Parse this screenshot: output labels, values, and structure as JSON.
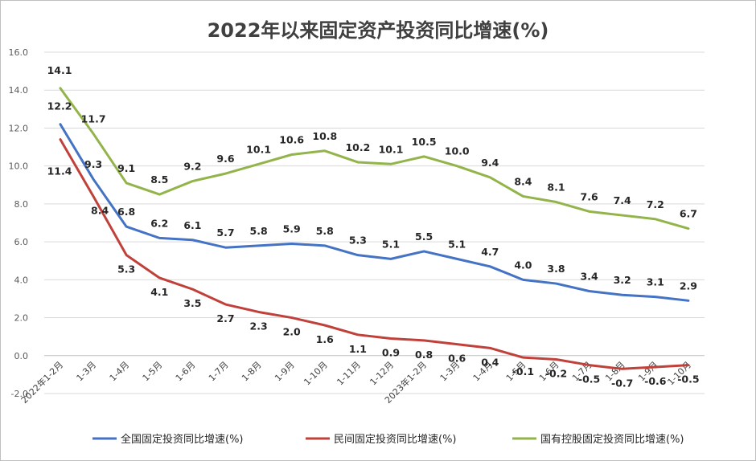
{
  "chart_data": {
    "type": "line",
    "title": "2022年以来固定资产投资同比增速(%)",
    "xlabel": "",
    "ylabel": "",
    "ylim": [
      -2.0,
      16.0
    ],
    "yticks": [
      "-2.0",
      "0.0",
      "2.0",
      "4.0",
      "6.0",
      "8.0",
      "10.0",
      "12.0",
      "14.0",
      "16.0"
    ],
    "ytick_values": [
      -2,
      0,
      2,
      4,
      6,
      8,
      10,
      12,
      14,
      16
    ],
    "grid": true,
    "legend_position": "bottom",
    "categories": [
      "2022年1-2月",
      "1-3月",
      "1-4月",
      "1-5月",
      "1-6月",
      "1-7月",
      "1-8月",
      "1-9月",
      "1-10月",
      "1-11月",
      "1-12月",
      "2023年1-2月",
      "1-3月",
      "1-4月",
      "1-5月",
      "1-6月",
      "1-7月",
      "1-8月",
      "1-9月",
      "1-10月"
    ],
    "series": [
      {
        "name": "全国固定投资同比增速(%)",
        "color": "#4472c4",
        "values": [
          12.2,
          9.3,
          6.8,
          6.2,
          6.1,
          5.7,
          5.8,
          5.9,
          5.8,
          5.3,
          5.1,
          5.5,
          5.1,
          4.7,
          4.0,
          3.8,
          3.4,
          3.2,
          3.1,
          2.9
        ],
        "labels": [
          "12.2",
          "9.3",
          "6.8",
          "6.2",
          "6.1",
          "5.7",
          "5.8",
          "5.9",
          "5.8",
          "5.3",
          "5.1",
          "5.5",
          "5.1",
          "4.7",
          "4.0",
          "3.8",
          "3.4",
          "3.2",
          "3.1",
          "2.9"
        ]
      },
      {
        "name": "民间固定投资同比增速(%)",
        "color": "#c0403a",
        "values": [
          11.4,
          8.4,
          5.3,
          4.1,
          3.5,
          2.7,
          2.3,
          2.0,
          1.6,
          1.1,
          0.9,
          0.8,
          0.6,
          0.4,
          -0.1,
          -0.2,
          -0.5,
          -0.7,
          -0.6,
          -0.5
        ],
        "labels": [
          "11.4",
          "8.4",
          "5.3",
          "4.1",
          "3.5",
          "2.7",
          "2.3",
          "2.0",
          "1.6",
          "1.1",
          "0.9",
          "0.8",
          "0.6",
          "0.4",
          "-0.1",
          "-0.2",
          "-0.5",
          "-0.7",
          "-0.6",
          "-0.5"
        ]
      },
      {
        "name": "国有控股固定投资同比增速(%)",
        "color": "#92b44a",
        "values": [
          14.1,
          11.7,
          9.1,
          8.5,
          9.2,
          9.6,
          10.1,
          10.6,
          10.8,
          10.2,
          10.1,
          10.5,
          10.0,
          9.4,
          8.4,
          8.1,
          7.6,
          7.4,
          7.2,
          6.7
        ],
        "labels": [
          "14.1",
          "11.7",
          "9.1",
          "8.5",
          "9.2",
          "9.6",
          "10.1",
          "10.6",
          "10.8",
          "10.2",
          "10.1",
          "10.5",
          "10.0",
          "9.4",
          "8.4",
          "8.1",
          "7.6",
          "7.4",
          "7.2",
          "6.7"
        ]
      }
    ]
  }
}
